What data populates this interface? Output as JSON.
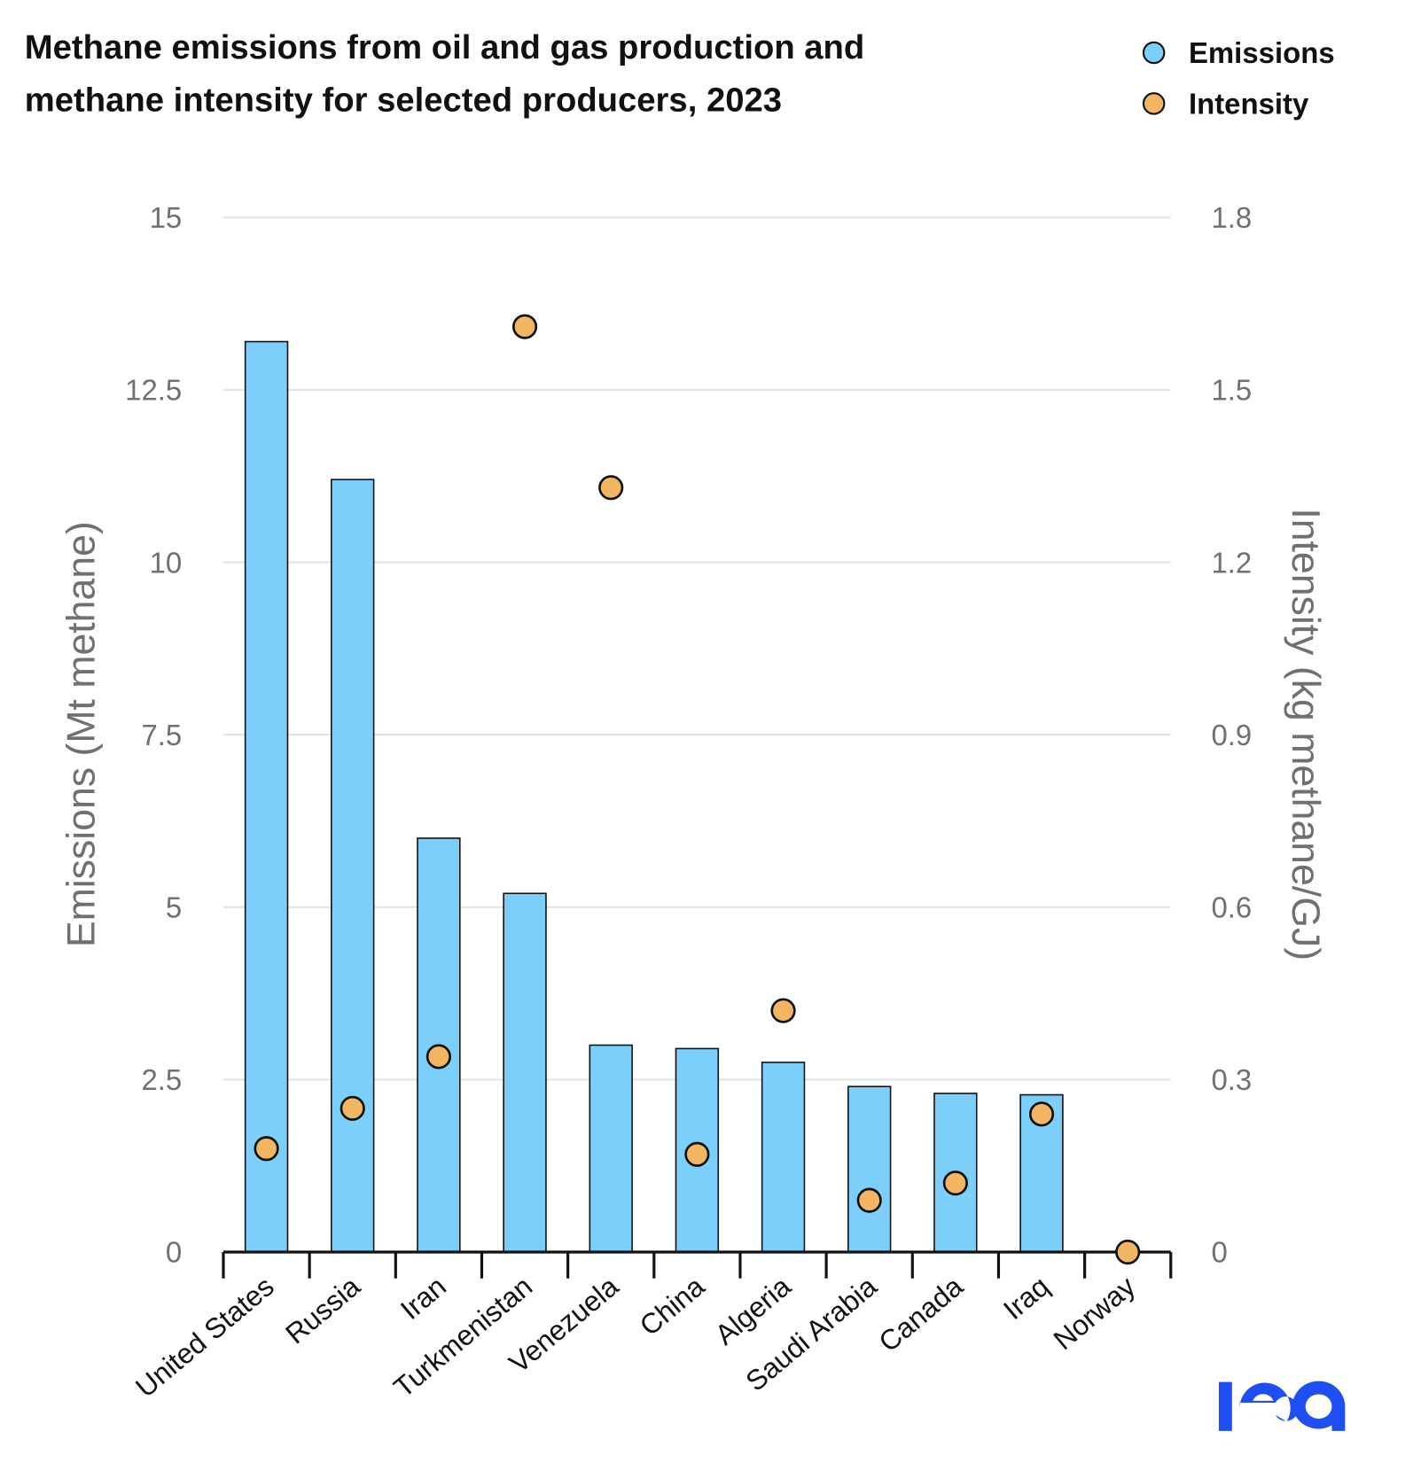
{
  "chart_data": {
    "type": "bar",
    "title_lines": [
      "Methane emissions from oil and gas production and",
      "methane intensity for selected producers, 2023"
    ],
    "categories": [
      "United States",
      "Russia",
      "Iran",
      "Turkmenistan",
      "Venezuela",
      "China",
      "Algeria",
      "Saudi Arabia",
      "Canada",
      "Iraq",
      "Norway"
    ],
    "series": [
      {
        "name": "Emissions",
        "type": "bar",
        "axis": "left",
        "color": "#7ccffa",
        "values": [
          13.2,
          11.2,
          6.0,
          5.2,
          3.0,
          2.95,
          2.75,
          2.4,
          2.3,
          2.28,
          0
        ]
      },
      {
        "name": "Intensity",
        "type": "scatter",
        "axis": "right",
        "color": "#f2b562",
        "values": [
          0.18,
          0.25,
          0.34,
          1.61,
          1.33,
          0.17,
          0.42,
          0.09,
          0.12,
          0.24,
          0.0
        ]
      }
    ],
    "ylabel": "Emissions (Mt methane)",
    "y2label": "Intensity (kg methane/GJ)",
    "ylim": [
      0,
      15
    ],
    "y2lim": [
      0,
      1.8
    ],
    "yticks": [
      "0",
      "2.5",
      "5",
      "7.5",
      "10",
      "12.5",
      "15"
    ],
    "y2ticks": [
      "0",
      "0.3",
      "0.6",
      "0.9",
      "1.2",
      "1.5",
      "1.8"
    ],
    "grid": true,
    "legend_position": "top-right"
  },
  "logo": "iea",
  "logo_color": "#1f4ef5"
}
